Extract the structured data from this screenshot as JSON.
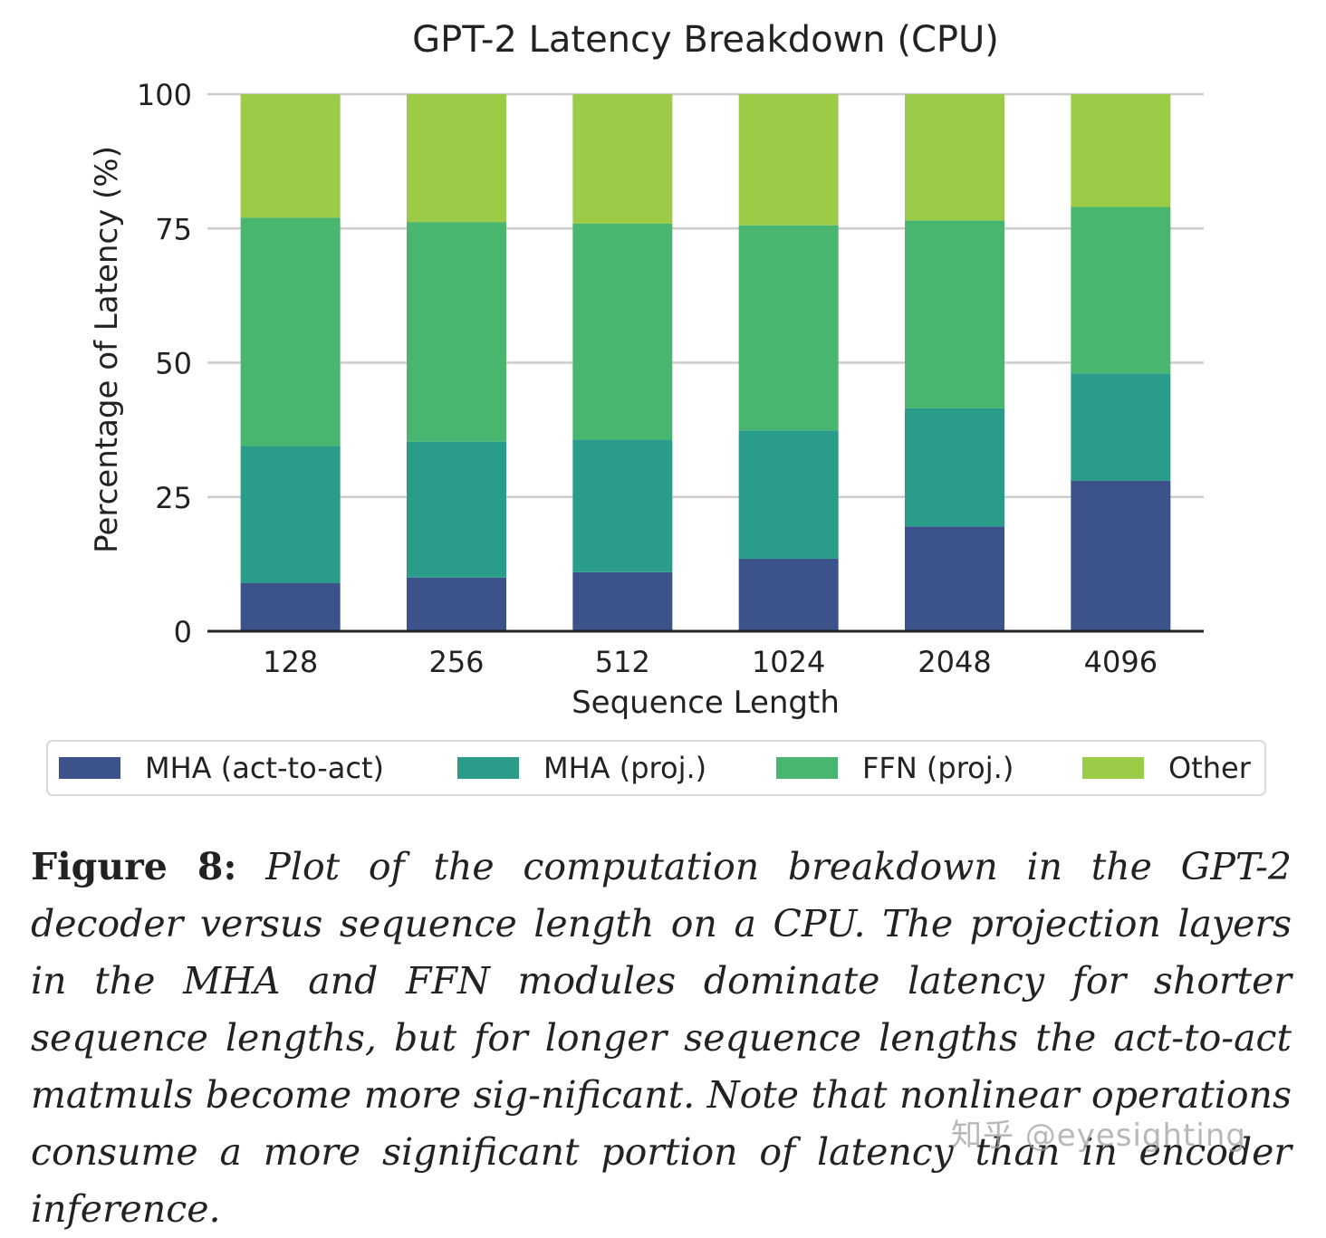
{
  "chart_data": {
    "type": "bar",
    "stacked": true,
    "title": "GPT-2 Latency Breakdown (CPU)",
    "xlabel": "Sequence Length",
    "ylabel": "Percentage of Latency (%)",
    "ylim": [
      0,
      100
    ],
    "yticks": [
      "0",
      "25",
      "50",
      "75",
      "100"
    ],
    "grid": true,
    "legend_position": "bottom",
    "categories": [
      "128",
      "256",
      "512",
      "1024",
      "2048",
      "4096"
    ],
    "series": [
      {
        "name": "MHA (act-to-act)",
        "color": "#3b528b",
        "values": [
          9,
          10,
          11,
          13.5,
          19.5,
          28
        ]
      },
      {
        "name": "MHA (proj.)",
        "color": "#2a9d8a",
        "values": [
          25.5,
          25.3,
          24.7,
          23.9,
          22,
          20
        ]
      },
      {
        "name": "FFN (proj.)",
        "color": "#48b66e",
        "values": [
          42.5,
          40.9,
          40.2,
          38.2,
          35,
          31
        ]
      },
      {
        "name": "Other",
        "color": "#9ccb47",
        "values": [
          23,
          23.8,
          24.1,
          24.4,
          23.5,
          21
        ]
      }
    ]
  },
  "caption": {
    "lead": "Figure 8:",
    "body": "Plot of the computation breakdown in the GPT-2 decoder versus sequence length on a CPU. The projection layers in the MHA and FFN modules dominate latency for shorter sequence lengths, but for longer sequence lengths the act-to-act matmuls become more sig-nificant. Note that nonlinear operations consume a more significant portion of latency than in encoder inference."
  },
  "watermark": "知乎 @eyesighting"
}
